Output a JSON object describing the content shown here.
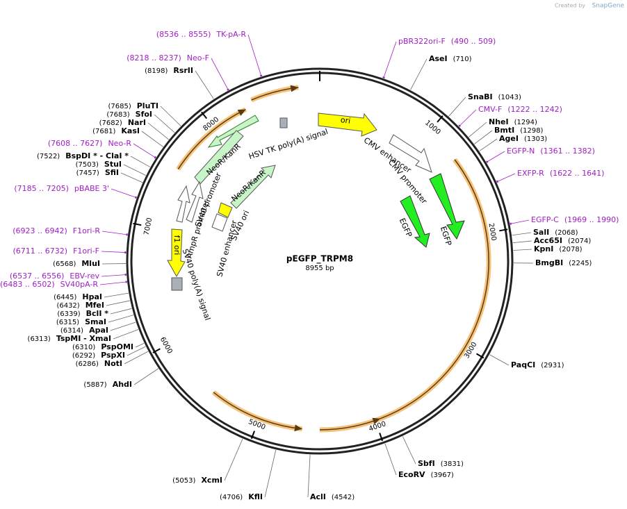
{
  "watermark": {
    "prefix": "Created by",
    "brand": "SnapGene"
  },
  "plasmid": {
    "name": "pEGFP_TRPM8",
    "length": {
      "value": 8955,
      "label": "8955 bp"
    }
  },
  "ruler_ticks": [
    1000,
    2000,
    3000,
    4000,
    5000,
    6000,
    7000,
    8000
  ],
  "sites": [
    {
      "name": "AseI",
      "position": "(710)"
    },
    {
      "name": "SnaBI",
      "position": "(1043)"
    },
    {
      "name": "NheI",
      "position": "(1294)"
    },
    {
      "name": "BmtI",
      "position": "(1298)"
    },
    {
      "name": "AgeI",
      "position": "(1303)"
    },
    {
      "name": "SalI",
      "position": "(2068)"
    },
    {
      "name": "Acc65I",
      "position": "(2074)"
    },
    {
      "name": "KpnI",
      "position": "(2078)"
    },
    {
      "name": "BmgBI",
      "position": "(2245)"
    },
    {
      "name": "PaqCI",
      "position": "(2931)"
    },
    {
      "name": "SbfI",
      "position": "(3831)"
    },
    {
      "name": "EcoRV",
      "position": "(3967)"
    },
    {
      "name": "AclI",
      "position": "(4542)"
    },
    {
      "name": "KflI",
      "position": "(4706)"
    },
    {
      "name": "XcmI",
      "position": "(5053)"
    },
    {
      "name": "AhdI",
      "position": "(5887)"
    },
    {
      "name": "NotI",
      "position": "(6286)"
    },
    {
      "name": "PspXI",
      "position": "(6292)"
    },
    {
      "name": "PspOMI",
      "position": "(6310)"
    },
    {
      "name": "TspMI - XmaI",
      "position": "(6313)"
    },
    {
      "name": "ApaI",
      "position": "(6314)"
    },
    {
      "name": "SmaI",
      "position": "(6315)"
    },
    {
      "name": "BclI *",
      "position": "(6339)"
    },
    {
      "name": "MfeI",
      "position": "(6432)"
    },
    {
      "name": "HpaI",
      "position": "(6445)"
    },
    {
      "name": "MluI",
      "position": "(6568)"
    },
    {
      "name": "SfiI",
      "position": "(7457)"
    },
    {
      "name": "StuI",
      "position": "(7503)"
    },
    {
      "name": "BspDI * - ClaI *",
      "position": "(7522)"
    },
    {
      "name": "KasI",
      "position": "(7681)"
    },
    {
      "name": "NarI",
      "position": "(7682)"
    },
    {
      "name": "SfoI",
      "position": "(7683)"
    },
    {
      "name": "PluTI",
      "position": "(7685)"
    },
    {
      "name": "RsrII",
      "position": "(8198)"
    }
  ],
  "primers": [
    {
      "name": "pBR322ori-F",
      "range": "(490 .. 509)"
    },
    {
      "name": "CMV-F",
      "range": "(1222 .. 1242)"
    },
    {
      "name": "EGFP-N",
      "range": "(1361 .. 1382)"
    },
    {
      "name": "EXFP-R",
      "range": "(1622 .. 1641)"
    },
    {
      "name": "EGFP-C",
      "range": "(1969 .. 1990)"
    },
    {
      "name": "SV40pA-R",
      "range": "(6483 .. 6502)"
    },
    {
      "name": "EBV-rev",
      "range": "(6537 .. 6556)"
    },
    {
      "name": "F1ori-F",
      "range": "(6711 .. 6732)"
    },
    {
      "name": "F1ori-R",
      "range": "(6923 .. 6942)"
    },
    {
      "name": "pBABE 3'",
      "range": "(7185 .. 7205)"
    },
    {
      "name": "Neo-R",
      "range": "(7608 .. 7627)"
    },
    {
      "name": "Neo-F",
      "range": "(8218 .. 8237)"
    },
    {
      "name": "TK-pA-R",
      "range": "(8536 .. 8555)"
    }
  ],
  "features": [
    {
      "label": "ori"
    },
    {
      "label": "CMV enhancer"
    },
    {
      "label": "CMV promoter"
    },
    {
      "label": "EGFP"
    },
    {
      "label": "EGFP"
    },
    {
      "label": "NeoR/KanR"
    },
    {
      "label": "NeoR/KanR"
    },
    {
      "label": "HSV TK poly(A) signal"
    },
    {
      "label": "SV40 promoter"
    },
    {
      "label": "AmpR promoter"
    },
    {
      "label": "f1 ori"
    },
    {
      "label": "SV40 poly(A) signal"
    },
    {
      "label": "SV40 ori"
    },
    {
      "label": "SV40 enhancer"
    }
  ]
}
